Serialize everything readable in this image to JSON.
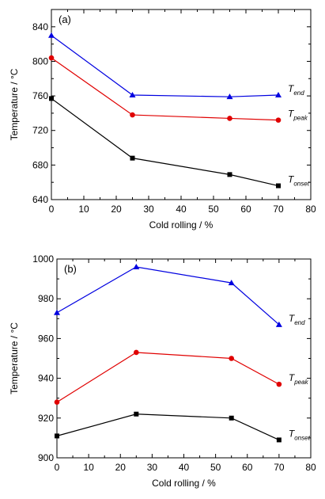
{
  "colors": {
    "series_colors": [
      "#000000",
      "#e00000",
      "#0000e0"
    ],
    "axis": "#000000"
  },
  "chart_data": [
    {
      "type": "line",
      "panel_label": "(a)",
      "xlabel": "Cold rolling / %",
      "ylabel": "Temperature / °C",
      "xlim": [
        0,
        80
      ],
      "ylim": [
        640,
        860
      ],
      "xticks": [
        "0",
        "10",
        "20",
        "30",
        "40",
        "50",
        "60",
        "70",
        "80"
      ],
      "yticks": [
        "640",
        "680",
        "720",
        "760",
        "800",
        "840"
      ],
      "x": [
        0,
        25,
        55,
        70
      ],
      "series": [
        {
          "name_main": "T",
          "name_sub": "onset",
          "marker": "square",
          "color": "#000000",
          "values": [
            757,
            688,
            669,
            656
          ]
        },
        {
          "name_main": "T",
          "name_sub": "peak",
          "marker": "circle",
          "color": "#e00000",
          "values": [
            804,
            738,
            734,
            732
          ]
        },
        {
          "name_main": "T",
          "name_sub": "end",
          "marker": "triangle",
          "color": "#0000e0",
          "values": [
            830,
            761,
            759,
            761
          ]
        }
      ]
    },
    {
      "type": "line",
      "panel_label": "(b)",
      "xlabel": "Cold rolling / %",
      "ylabel": "Temperature / °C",
      "xlim": [
        0,
        80
      ],
      "ylim": [
        900,
        1000
      ],
      "xticks": [
        "0",
        "10",
        "20",
        "30",
        "40",
        "50",
        "60",
        "70",
        "80"
      ],
      "yticks": [
        "900",
        "920",
        "940",
        "960",
        "980",
        "1000"
      ],
      "x": [
        0,
        25,
        55,
        70
      ],
      "series": [
        {
          "name_main": "T",
          "name_sub": "onset",
          "marker": "square",
          "color": "#000000",
          "values": [
            911,
            922,
            920,
            909
          ]
        },
        {
          "name_main": "T",
          "name_sub": "peak",
          "marker": "circle",
          "color": "#e00000",
          "values": [
            928,
            953,
            950,
            937
          ]
        },
        {
          "name_main": "T",
          "name_sub": "end",
          "marker": "triangle",
          "color": "#0000e0",
          "values": [
            973,
            996,
            988,
            967
          ]
        }
      ]
    }
  ]
}
